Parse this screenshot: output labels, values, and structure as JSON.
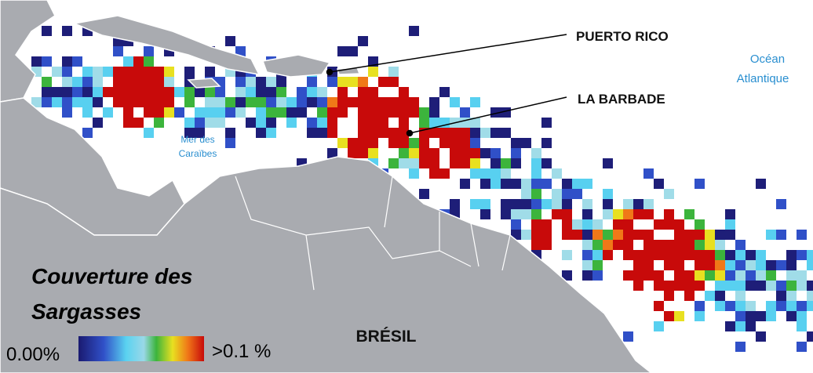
{
  "labels": {
    "puerto_rico": "PUERTO RICO",
    "barbade": "LA BARBADE",
    "ocean_line1": "Océan",
    "ocean_line2": "Atlantique",
    "sea_line1": "Mer des",
    "sea_line2": "Caraïbes",
    "bresil": "BRÉSIL"
  },
  "legend": {
    "title_line1": "Couverture des",
    "title_line2": "Sargasses",
    "min_label": "0.00%",
    "max_label": ">0.1 %"
  }
}
